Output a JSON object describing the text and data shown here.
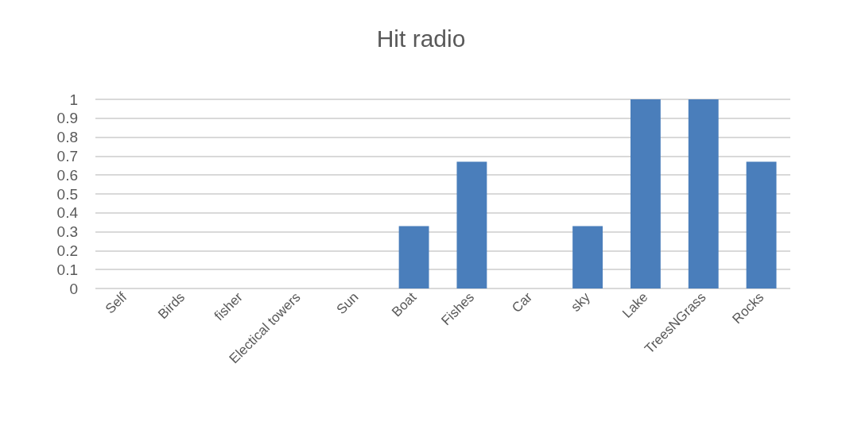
{
  "chart_data": {
    "type": "bar",
    "title": "Hit radio",
    "categories": [
      "Self",
      "Birds",
      "fisher",
      "Electical towers",
      "Sun",
      "Boat",
      "Fishes",
      "Car",
      "sky",
      "Lake",
      "TreesNGrass",
      "Rocks"
    ],
    "values": [
      0,
      0,
      0,
      0,
      0,
      0.33,
      0.67,
      0,
      0.33,
      1,
      1,
      0.67
    ],
    "color": "#4a7ebb",
    "ylim": [
      0,
      1
    ],
    "yticks": [
      0,
      0.1,
      0.2,
      0.3,
      0.4,
      0.5,
      0.6,
      0.7,
      0.8,
      0.9,
      1
    ],
    "grid": "y"
  }
}
